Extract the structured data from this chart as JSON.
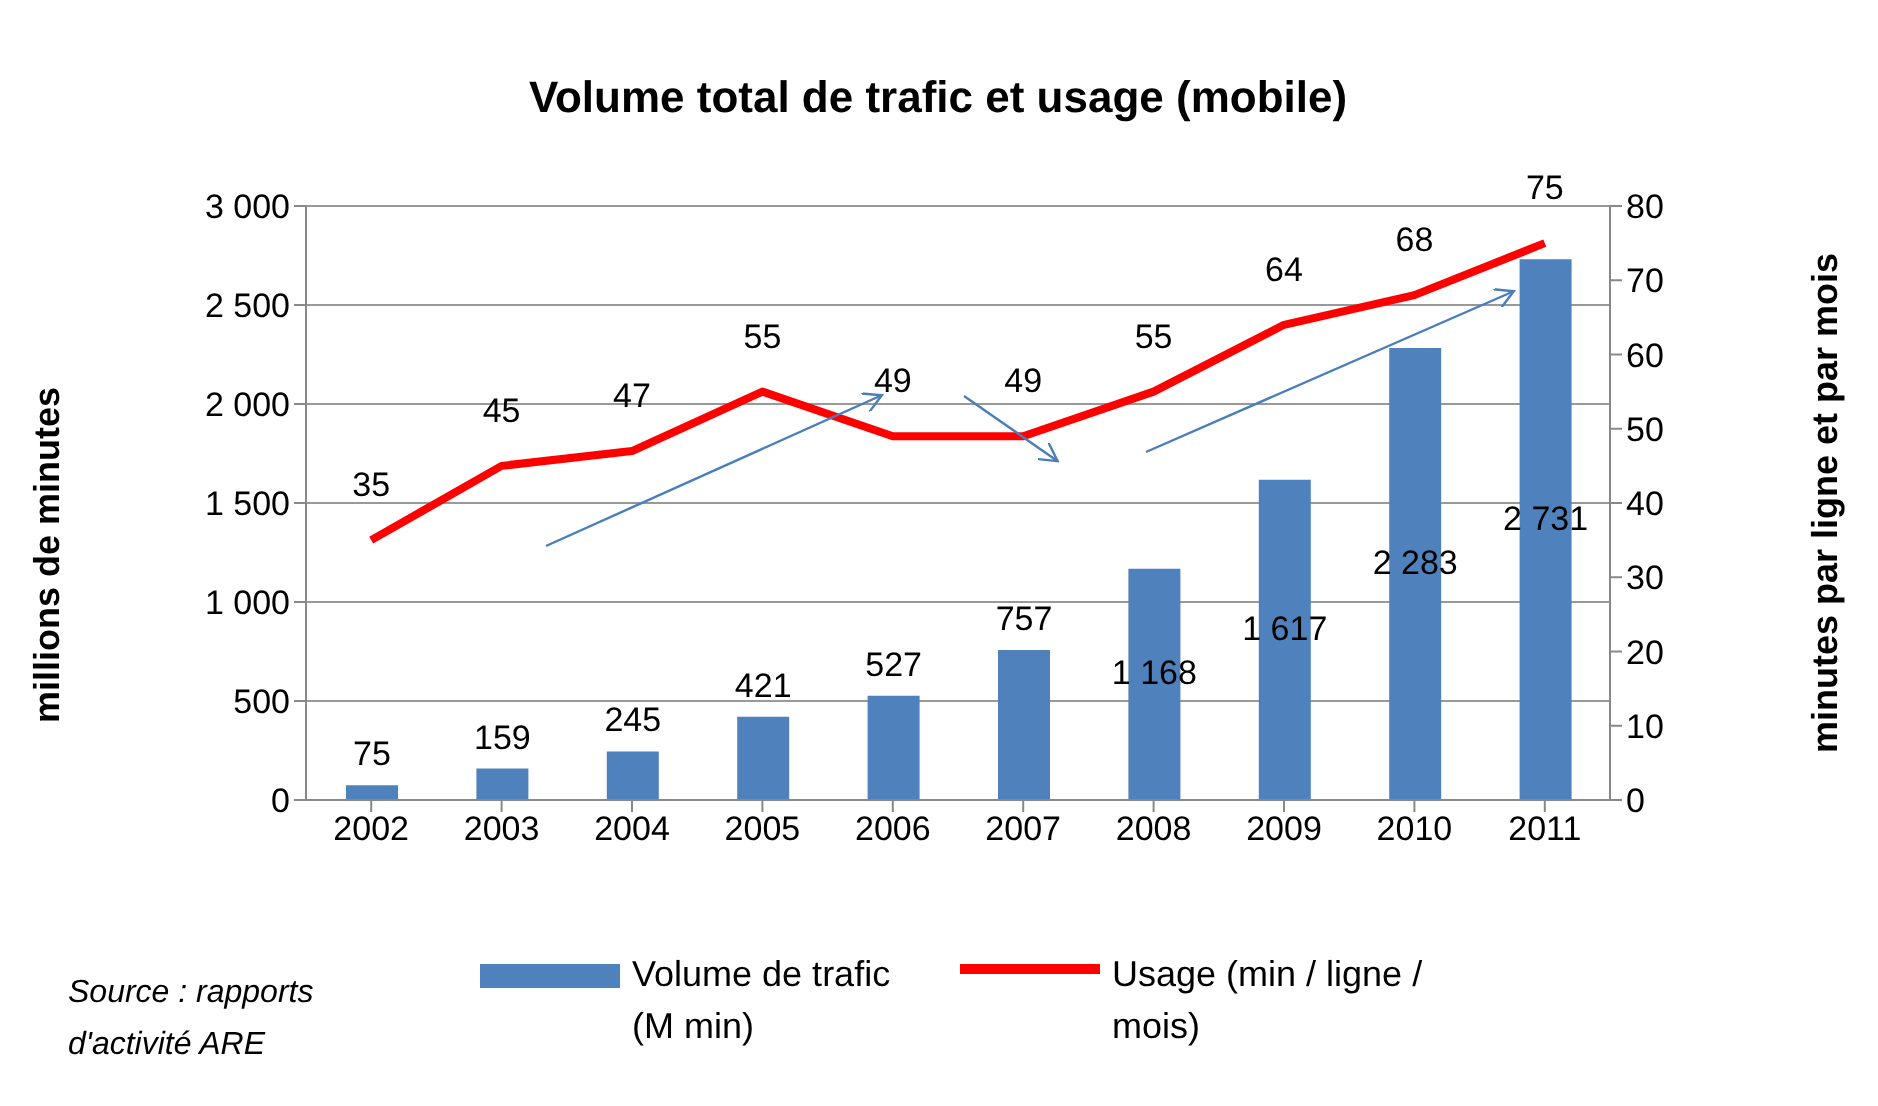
{
  "chart_data": {
    "type": "bar",
    "title": "Volume total de trafic et usage (mobile)",
    "ylabel": "millions de minutes",
    "y2label": "minutes par ligne et par mois",
    "categories": [
      "2002",
      "2003",
      "2004",
      "2005",
      "2006",
      "2007",
      "2008",
      "2009",
      "2010",
      "2011"
    ],
    "series": [
      {
        "name": "Volume de trafic (M min)",
        "color": "#4f81bd",
        "values": [
          75,
          159,
          245,
          421,
          527,
          757,
          1168,
          1617,
          2283,
          2731
        ],
        "value_labels": [
          "75",
          "159",
          "245",
          "421",
          "527",
          "757",
          "1 168",
          "1 617",
          "2 283",
          "2 731"
        ]
      },
      {
        "name": "Usage (min / ligne / mois)",
        "type": "line",
        "axis": "y2",
        "color": "#ff0000",
        "values": [
          35,
          45,
          47,
          55,
          49,
          49,
          55,
          64,
          68,
          75
        ],
        "value_labels": [
          "35",
          "45",
          "47",
          "55",
          "49",
          "49",
          "55",
          "64",
          "68",
          "75"
        ]
      }
    ],
    "ylim": [
      0,
      3000
    ],
    "yticks": [
      0,
      500,
      {
        "value": 1000,
        "label": "1 000"
      },
      {
        "value": 1500,
        "label": "1 500"
      },
      {
        "value": 2000,
        "label": "2 000"
      },
      {
        "value": 2500,
        "label": "2 500"
      },
      {
        "value": 3000,
        "label": "3 000"
      }
    ],
    "y2lim": [
      0,
      80
    ],
    "y2ticks": [
      0,
      10,
      20,
      30,
      40,
      50,
      60,
      70,
      80
    ],
    "grid": "y",
    "legend": "bottom",
    "marker": "none",
    "line_style": "solid",
    "annotations": [
      "Source : rapports d'activité ARE"
    ]
  }
}
